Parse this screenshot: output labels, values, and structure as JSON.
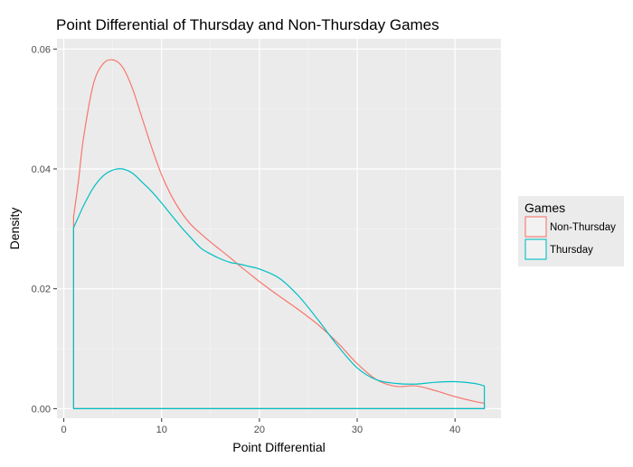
{
  "chart_data": {
    "type": "line",
    "subtype": "density",
    "title": "Point Differential of Thursday and Non-Thursday Games",
    "xlabel": "Point Differential",
    "ylabel": "Density",
    "xlim": [
      -0.7,
      44.7
    ],
    "ylim": [
      -0.0016,
      0.0617
    ],
    "xticks": [
      0,
      10,
      20,
      30,
      40
    ],
    "xtick_labels": [
      "0",
      "10",
      "20",
      "30",
      "40"
    ],
    "yticks": [
      0,
      0.02,
      0.04,
      0.06
    ],
    "ytick_labels": [
      "0.00",
      "0.02",
      "0.04",
      "0.06"
    ],
    "grid": true,
    "panel_background": "#ebebeb",
    "legend": {
      "title": "Games",
      "position": "right"
    },
    "series": [
      {
        "name": "Non-Thursday",
        "color": "#f8766d",
        "x": [
          1,
          1.5,
          2,
          3,
          4,
          5,
          6,
          7,
          8,
          9,
          10,
          11,
          12,
          13,
          14,
          15,
          16,
          17,
          18,
          19,
          20,
          22,
          24,
          26,
          28,
          30,
          32,
          34,
          36,
          38,
          40,
          42,
          43
        ],
        "y": [
          0.032,
          0.038,
          0.045,
          0.054,
          0.0575,
          0.0582,
          0.057,
          0.0535,
          0.0485,
          0.0435,
          0.039,
          0.0355,
          0.0328,
          0.0307,
          0.0292,
          0.0278,
          0.0265,
          0.0252,
          0.0238,
          0.0225,
          0.0212,
          0.0188,
          0.0165,
          0.014,
          0.011,
          0.0075,
          0.0048,
          0.0037,
          0.0038,
          0.003,
          0.002,
          0.0012,
          0.0009
        ]
      },
      {
        "name": "Thursday",
        "color": "#00bfc4",
        "x": [
          1,
          1.5,
          2,
          3,
          4,
          5,
          6,
          7,
          8,
          9,
          10,
          11,
          12,
          13,
          14,
          15,
          16,
          17,
          18,
          19,
          20,
          22,
          24,
          26,
          28,
          30,
          32,
          34,
          36,
          38,
          40,
          42,
          43
        ],
        "y": [
          0.0302,
          0.032,
          0.0338,
          0.0368,
          0.0388,
          0.0398,
          0.04,
          0.0393,
          0.0378,
          0.0362,
          0.0343,
          0.0323,
          0.0303,
          0.0285,
          0.0268,
          0.0258,
          0.025,
          0.0244,
          0.0241,
          0.0237,
          0.0233,
          0.0218,
          0.0188,
          0.0148,
          0.0105,
          0.0068,
          0.0048,
          0.0042,
          0.0041,
          0.0044,
          0.0045,
          0.0042,
          0.0038
        ]
      }
    ]
  }
}
